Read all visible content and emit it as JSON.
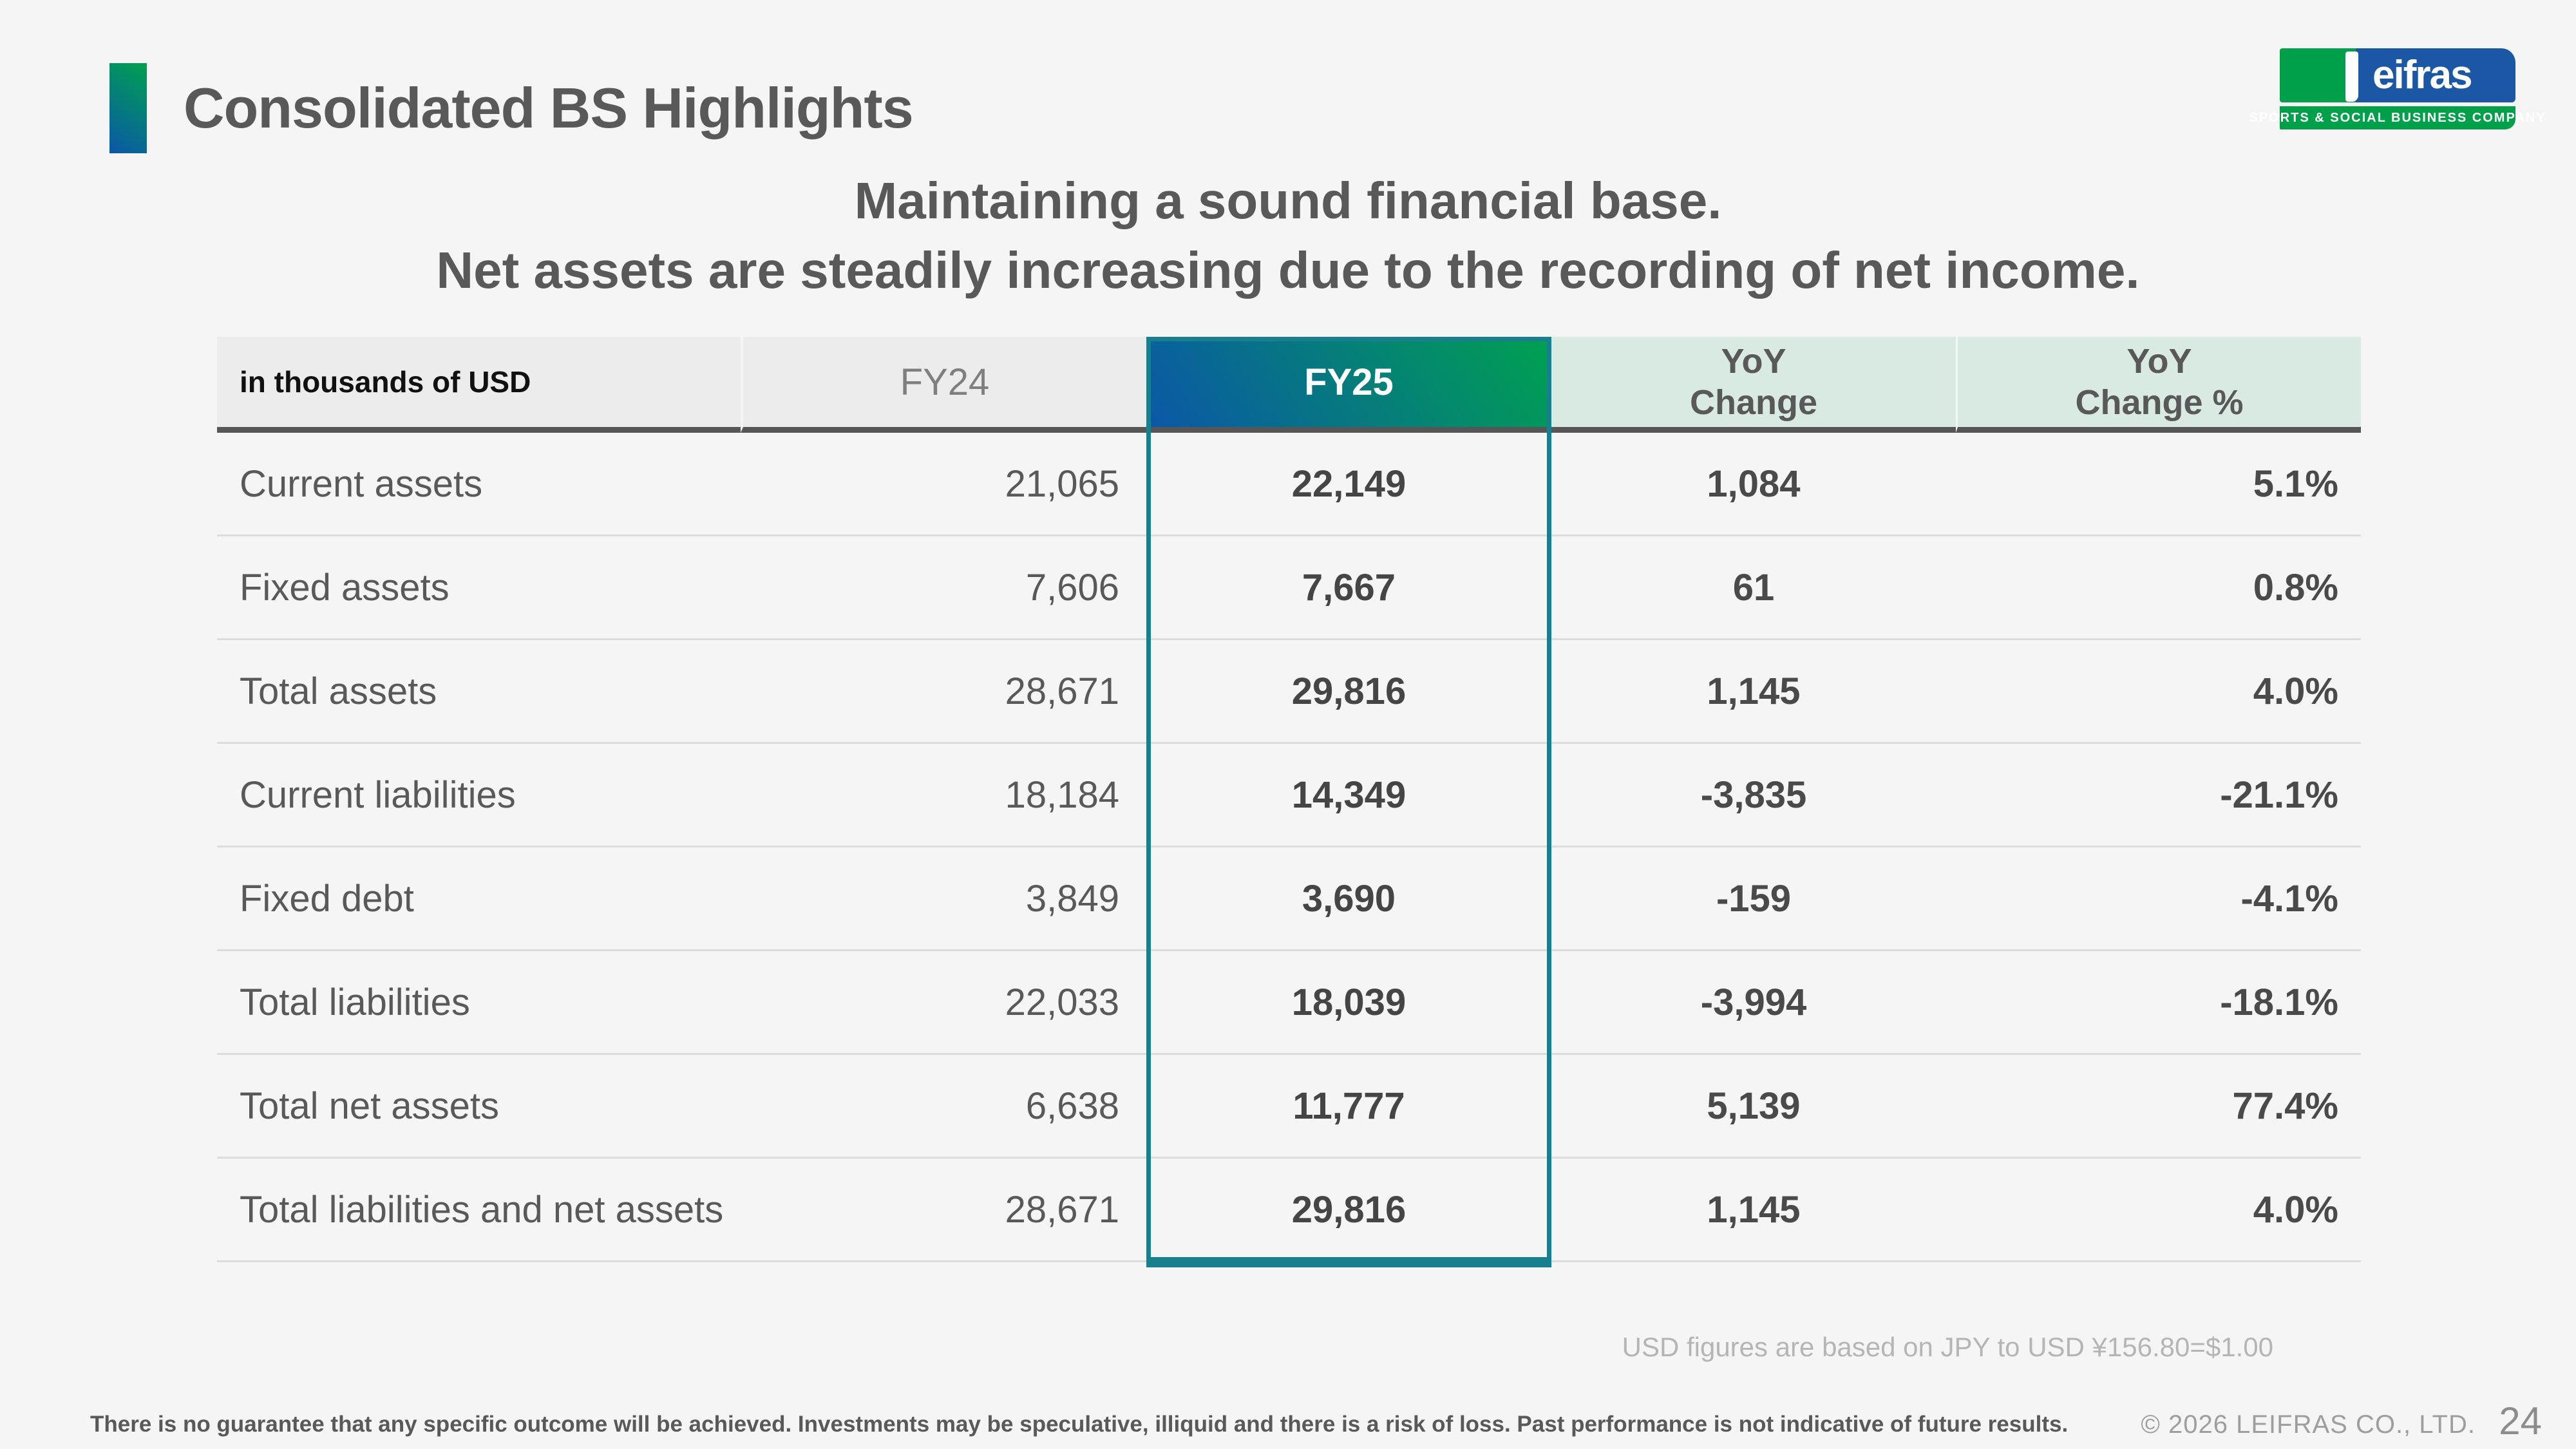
{
  "slide": {
    "title": "Consolidated BS Highlights",
    "subtitle_line1": "Maintaining a sound financial base.",
    "subtitle_line2": "Net assets are steadily increasing due to the recording of net income.",
    "fx_note": "USD figures are based on JPY to USD ¥156.80=$1.00",
    "disclaimer": "There is no guarantee that any specific outcome will be achieved. Investments may be speculative, illiquid and there is a risk of loss. Past performance is not indicative of future results.",
    "copyright": "© 2026 LEIFRAS CO., LTD.",
    "page_number": "24"
  },
  "logo": {
    "wordmark_rest": "eifras",
    "tagline": "SPORTS & SOCIAL BUSINESS COMPANY"
  },
  "table": {
    "unit_label": "in thousands of USD",
    "header": {
      "fy24": "FY24",
      "fy25": "FY25",
      "yoy_change_line1": "YoY",
      "yoy_change_line2": "Change",
      "yoy_pct_line1": "YoY",
      "yoy_pct_line2": "Change %"
    },
    "rows": [
      {
        "label": "Current assets",
        "fy24": "21,065",
        "fy25": "22,149",
        "change": "1,084",
        "change_pct": "5.1%"
      },
      {
        "label": "Fixed assets",
        "fy24": "7,606",
        "fy25": "7,667",
        "change": "61",
        "change_pct": "0.8%"
      },
      {
        "label": "Total assets",
        "fy24": "28,671",
        "fy25": "29,816",
        "change": "1,145",
        "change_pct": "4.0%"
      },
      {
        "label": "Current liabilities",
        "fy24": "18,184",
        "fy25": "14,349",
        "change": "-3,835",
        "change_pct": "-21.1%"
      },
      {
        "label": "Fixed debt",
        "fy24": "3,849",
        "fy25": "3,690",
        "change": "-159",
        "change_pct": "-4.1%"
      },
      {
        "label": "Total liabilities",
        "fy24": "22,033",
        "fy25": "18,039",
        "change": "-3,994",
        "change_pct": "-18.1%"
      },
      {
        "label": "Total net assets",
        "fy24": "6,638",
        "fy25": "11,777",
        "change": "5,139",
        "change_pct": "77.4%"
      },
      {
        "label": "Total liabilities and net assets",
        "fy24": "28,671",
        "fy25": "29,816",
        "change": "1,145",
        "change_pct": "4.0%"
      }
    ]
  },
  "colors": {
    "accent_green": "#00a150",
    "accent_blue": "#0b57a8",
    "teal_border": "#177f8d",
    "header_gray_bg": "#ececec",
    "mint_bg": "#d9eae3",
    "text_dark": "#595959"
  }
}
